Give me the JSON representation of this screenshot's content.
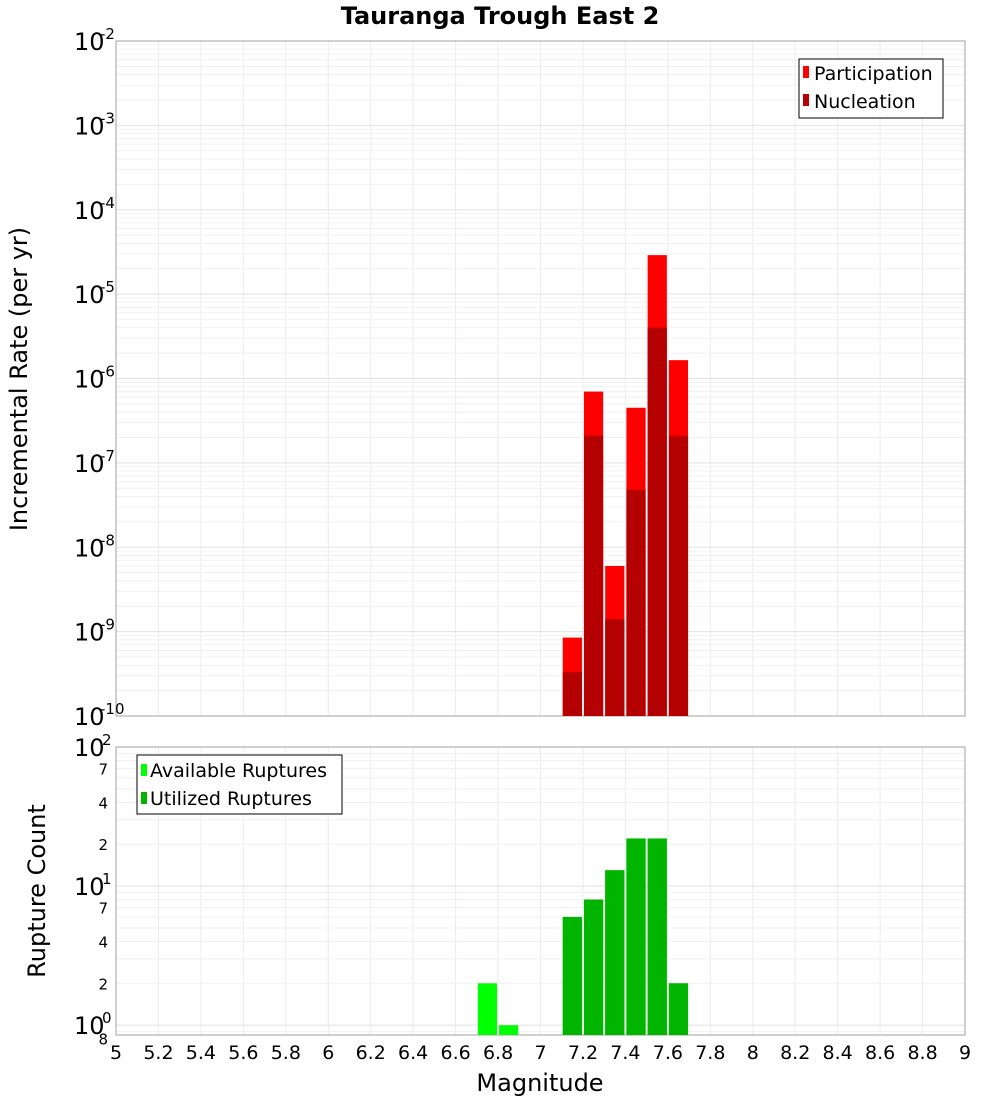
{
  "chart_data": [
    {
      "type": "bar",
      "title": "Tauranga Trough East 2",
      "xlabel": "",
      "ylabel": "Incremental Rate (per yr)",
      "yscale": "log",
      "ylim": [
        1e-10,
        0.01
      ],
      "xlim": [
        5,
        9
      ],
      "y_ticks": [
        {
          "base": "10",
          "exp": "-2"
        },
        {
          "base": "10",
          "exp": "-3"
        },
        {
          "base": "10",
          "exp": "-4"
        },
        {
          "base": "10",
          "exp": "-5"
        },
        {
          "base": "10",
          "exp": "-6"
        },
        {
          "base": "10",
          "exp": "-7"
        },
        {
          "base": "10",
          "exp": "-8"
        },
        {
          "base": "10",
          "exp": "-9"
        },
        {
          "base": "10",
          "exp": "-10"
        }
      ],
      "grid": true,
      "legend_position": "top-right",
      "x": [
        7.15,
        7.25,
        7.35,
        7.45,
        7.55,
        7.65
      ],
      "series": [
        {
          "name": "Participation",
          "color": "#ff0000",
          "values": [
            8.5e-10,
            7e-07,
            6e-09,
            4.5e-07,
            2.9e-05,
            1.65e-06
          ]
        },
        {
          "name": "Nucleation",
          "color": "#b40000",
          "values": [
            3.3e-10,
            2.1e-07,
            1.4e-09,
            4.8e-08,
            4e-06,
            2.1e-07
          ]
        }
      ]
    },
    {
      "type": "bar",
      "xlabel": "Magnitude",
      "ylabel": "Rupture Count",
      "yscale": "log",
      "ylim": [
        0.85,
        100
      ],
      "xlim": [
        5,
        9
      ],
      "x_ticks": [
        "5",
        "5.2",
        "5.4",
        "5.6",
        "5.8",
        "6",
        "6.2",
        "6.4",
        "6.6",
        "6.8",
        "7",
        "7.2",
        "7.4",
        "7.6",
        "7.8",
        "8",
        "8.2",
        "8.4",
        "8.6",
        "8.8",
        "9"
      ],
      "y_major_ticks": [
        {
          "value": 100,
          "base": "10",
          "exp": "2"
        },
        {
          "value": 10,
          "base": "10",
          "exp": "1"
        },
        {
          "value": 1,
          "base": "10",
          "exp": "0"
        }
      ],
      "y_minor_ticks": [
        {
          "value": 70,
          "label": "7"
        },
        {
          "value": 40,
          "label": "4"
        },
        {
          "value": 20,
          "label": "2"
        },
        {
          "value": 7,
          "label": "7"
        },
        {
          "value": 4,
          "label": "4"
        },
        {
          "value": 2,
          "label": "2"
        },
        {
          "value": 0.8,
          "label": "8"
        }
      ],
      "grid": true,
      "legend_position": "top-left",
      "x": [
        6.75,
        6.85,
        7.15,
        7.25,
        7.35,
        7.45,
        7.55,
        7.65
      ],
      "series": [
        {
          "name": "Available Ruptures",
          "color": "#00ff00",
          "values": [
            2,
            1,
            6,
            8,
            13,
            22,
            22,
            2
          ]
        },
        {
          "name": "Utilized Ruptures",
          "color": "#00b400",
          "values": [
            0,
            0,
            6,
            8,
            13,
            22,
            22,
            2
          ]
        }
      ]
    }
  ]
}
